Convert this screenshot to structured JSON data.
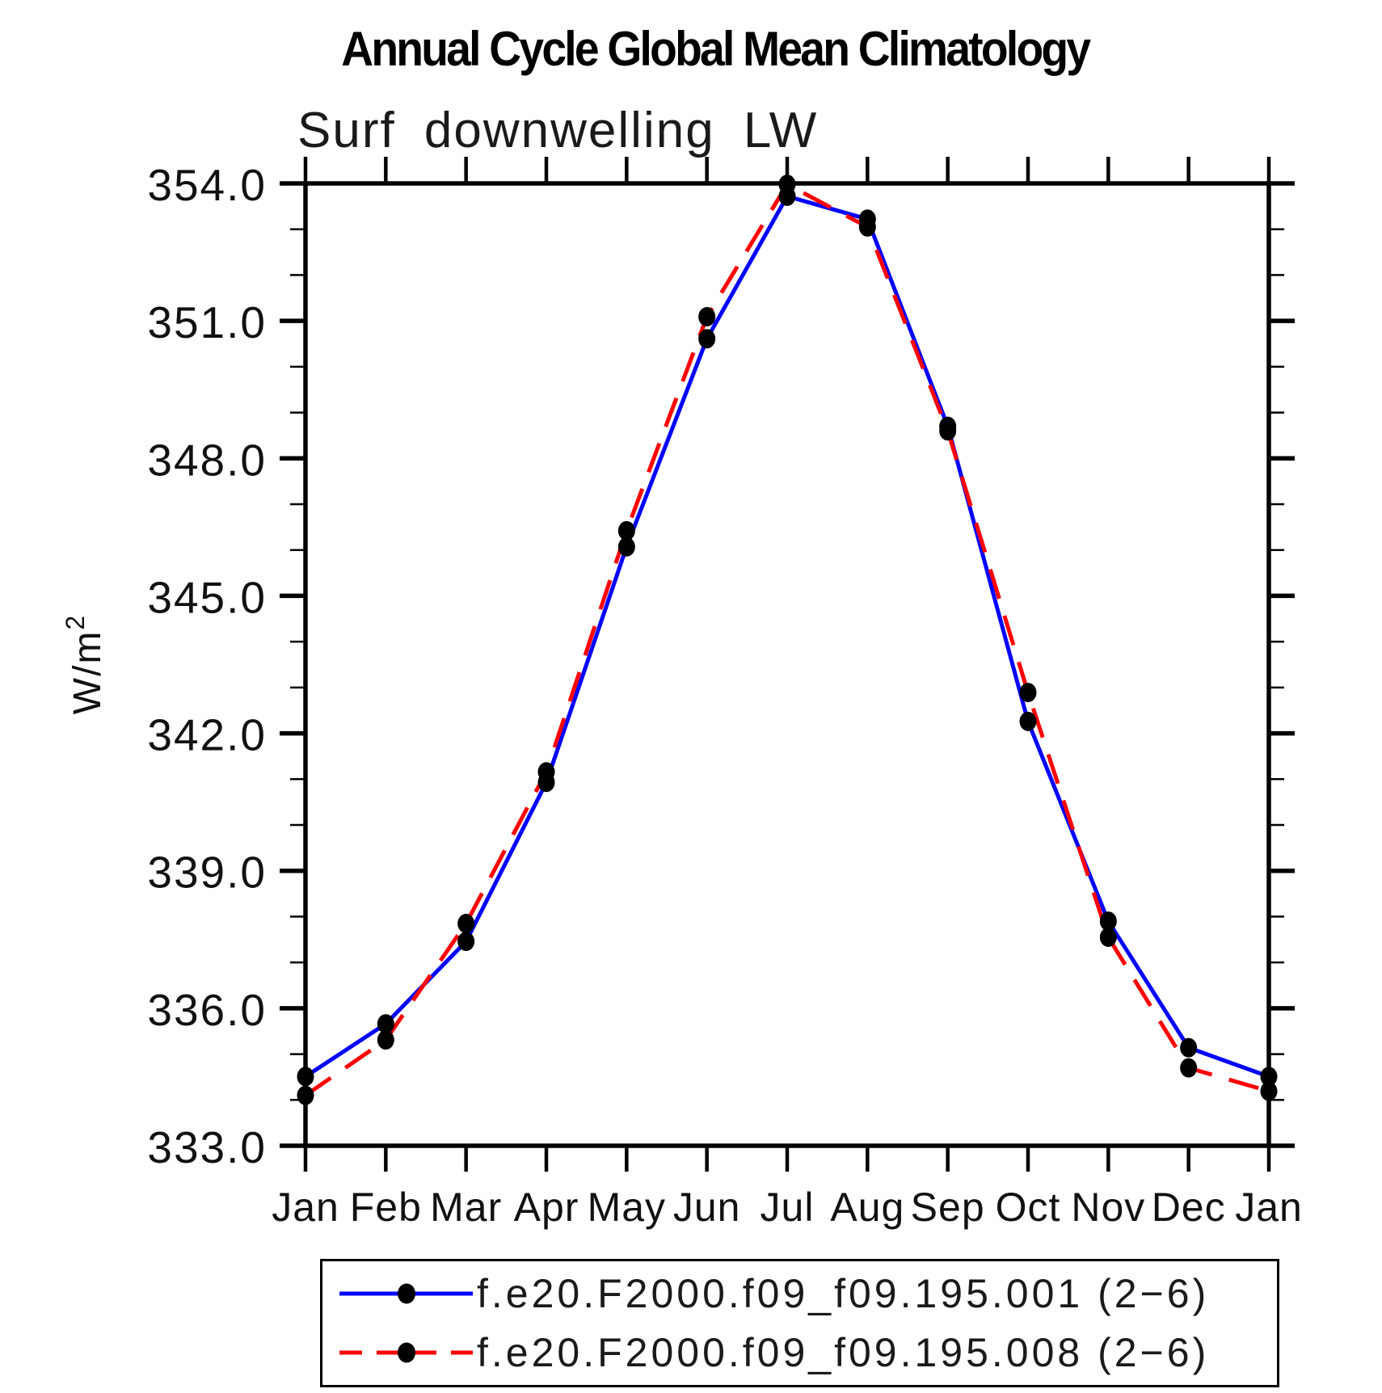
{
  "chart_data": {
    "type": "line",
    "title": "Annual Cycle Global Mean Climatology",
    "subtitle": "Surf downwelling LW",
    "ylabel": "W/m²",
    "categories": [
      "Jan",
      "Feb",
      "Mar",
      "Apr",
      "May",
      "Jun",
      "Jul",
      "Aug",
      "Sep",
      "Oct",
      "Nov",
      "Dec",
      "Jan"
    ],
    "ylim": [
      333.0,
      354.0
    ],
    "ytick_major_step": 3.0,
    "ytick_minor_step": 1.0,
    "ytick_label_decimals": 1,
    "grid": false,
    "legend_position": "bottom",
    "axis_color": "#000000",
    "marker_color": "#000000",
    "series": [
      {
        "name": "f.e20.F2000.f09_f09.195.001 (2−6)",
        "color": "#0000ff",
        "line_style": "solid",
        "marker": "filled-circle",
        "values": [
          334.51,
          335.66,
          337.46,
          340.93,
          346.07,
          350.61,
          353.72,
          353.22,
          348.7,
          342.26,
          337.9,
          335.14,
          334.51
        ]
      },
      {
        "name": "f.e20.F2000.f09_f09.195.008 (2−6)",
        "color": "#ff0000",
        "line_style": "dashed",
        "marker": "filled-circle",
        "values": [
          334.1,
          335.31,
          337.85,
          341.16,
          346.42,
          351.09,
          353.98,
          353.05,
          348.6,
          342.89,
          337.55,
          334.7,
          334.19
        ]
      }
    ]
  }
}
